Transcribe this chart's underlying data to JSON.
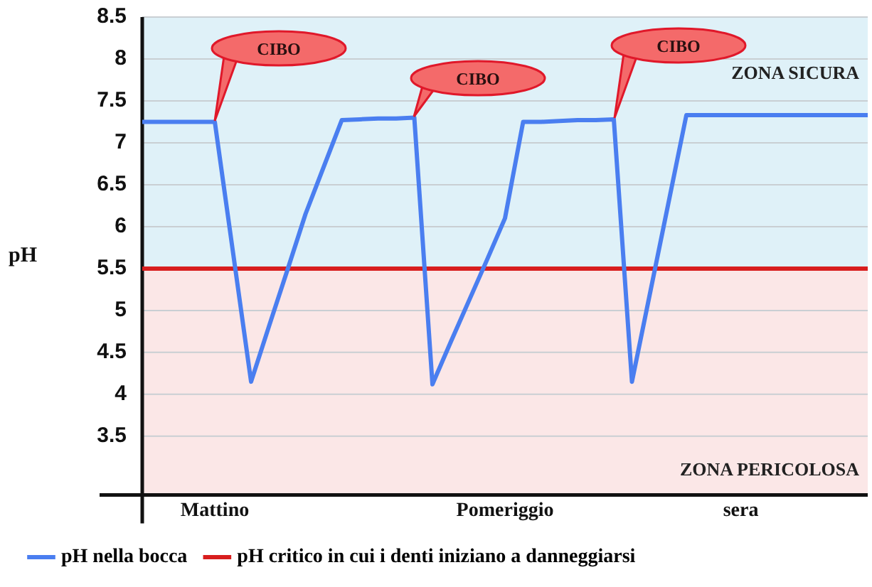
{
  "chart_data": {
    "type": "line",
    "ylabel": "pH",
    "categories": [
      null,
      null,
      null,
      null,
      "Mattino",
      null,
      null,
      null,
      null,
      null,
      null,
      null,
      null,
      null,
      null,
      null,
      null,
      null,
      null,
      null,
      "Pomeriggio",
      null,
      null,
      null,
      null,
      null,
      null,
      null,
      null,
      null,
      null,
      null,
      null,
      "sera",
      null,
      null,
      null,
      null,
      null,
      null,
      null
    ],
    "ylim": [
      2.8,
      8.5
    ],
    "yticks": [
      3.5,
      4,
      4.5,
      5,
      5.5,
      6,
      6.5,
      7,
      7.5,
      8,
      8.5
    ],
    "series": [
      {
        "name": "pH nella bocca",
        "color": "#4a7ef0",
        "values": [
          7.25,
          7.25,
          7.25,
          7.25,
          7.25,
          5.7,
          4.15,
          4.82,
          5.48,
          6.15,
          6.71,
          7.27,
          7.28,
          7.29,
          7.29,
          7.3,
          4.12,
          4.62,
          5.11,
          5.6,
          6.1,
          7.25,
          7.25,
          7.26,
          7.27,
          7.27,
          7.28,
          4.15,
          5.21,
          6.27,
          7.33,
          7.33,
          7.33,
          7.33,
          7.33,
          7.33,
          7.33,
          7.33,
          7.33,
          7.33,
          7.33
        ]
      }
    ],
    "ref_lines": [
      {
        "axis": "y",
        "value": 5.5,
        "label": "pH critico in cui i denti iniziano a danneggiarsi",
        "color": "#d81e1e"
      }
    ],
    "bands": [
      {
        "axis": "y",
        "from": 5.5,
        "to": 8.5,
        "label": "ZONA SICURA",
        "color": "#dff1f8"
      },
      {
        "axis": "y",
        "from": 2.8,
        "to": 5.5,
        "label": "ZONA PERICOLOSA",
        "color": "#fbe7e7"
      }
    ],
    "annotations": [
      "CIBO",
      "CIBO",
      "CIBO"
    ],
    "grid": "y",
    "legend": "bottom",
    "marker": "none",
    "line_style": "solid"
  }
}
